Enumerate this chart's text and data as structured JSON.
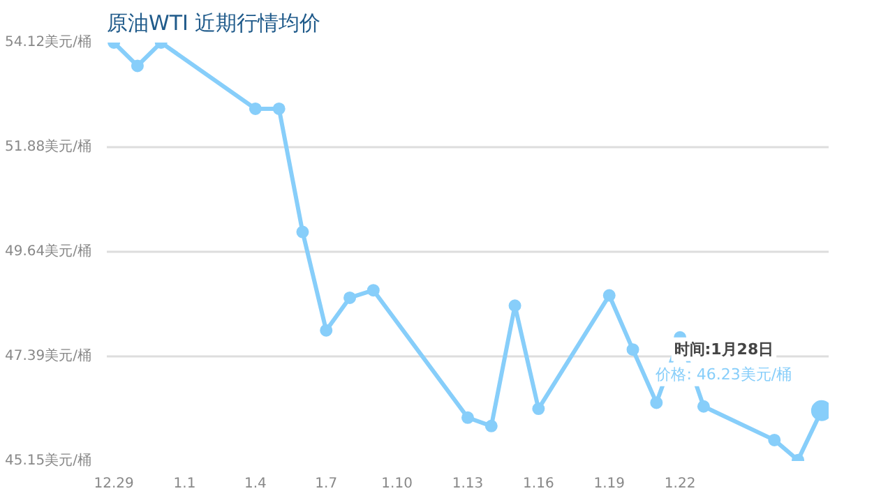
{
  "chart_data": {
    "type": "line",
    "title": "原油WTI 近期行情均价",
    "categories": [
      "12.29",
      null,
      null,
      "1.1",
      null,
      null,
      "1.4",
      null,
      null,
      "1.7",
      null,
      null,
      "1.10",
      null,
      null,
      "1.13",
      null,
      null,
      "1.16",
      null,
      null,
      "1.19",
      null,
      null,
      "1.22",
      null,
      null,
      null,
      null,
      null,
      null
    ],
    "series": [
      {
        "color": "#87cefa",
        "values": [
          54.12,
          53.62,
          54.12,
          null,
          null,
          null,
          52.7,
          52.7,
          50.06,
          47.95,
          48.65,
          48.81,
          null,
          null,
          null,
          46.08,
          45.9,
          48.48,
          46.27,
          null,
          null,
          48.7,
          47.54,
          46.4,
          47.8,
          46.32,
          null,
          null,
          45.6,
          45.17,
          46.23
        ]
      }
    ],
    "ylim": [
      45.15,
      54.12
    ],
    "yticks": [
      {
        "value": 45.15,
        "label": "45.15美元/桶"
      },
      {
        "value": 47.39,
        "label": "47.39美元/桶"
      },
      {
        "value": 49.64,
        "label": "49.64美元/桶"
      },
      {
        "value": 51.88,
        "label": "51.88美元/桶"
      },
      {
        "value": 54.12,
        "label": "54.12美元/桶"
      }
    ],
    "grid": "y",
    "marker": "circle",
    "line_style": "solid",
    "annotations": [
      "时间:1月28日",
      "价格: 46.23美元/桶"
    ]
  }
}
